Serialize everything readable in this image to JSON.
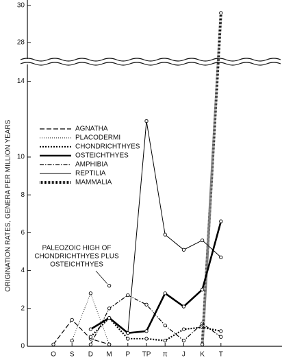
{
  "chart_data": {
    "type": "line",
    "y_label": "ORIGINATION RATES, GENERA PER MILLION YEARS",
    "categories": [
      "O",
      "S",
      "D",
      "M",
      "P",
      "TP",
      "π",
      "J",
      "K",
      "T"
    ],
    "ylim": [
      0,
      15
    ],
    "yticks": [
      0,
      2,
      4,
      6,
      8,
      10,
      14
    ],
    "y2lim": [
      27,
      30.3
    ],
    "y2ticks": [
      28,
      30
    ],
    "series": [
      {
        "name": "AGNATHA",
        "color": "#000000",
        "style": "dashed",
        "values": [
          0.1,
          1.4,
          0.4,
          0.1,
          null,
          null,
          null,
          null,
          null,
          null
        ]
      },
      {
        "name": "PLACODERMI",
        "color": "#000000",
        "style": "fine-dotted",
        "values": [
          null,
          0.3,
          2.8,
          0.1,
          null,
          null,
          null,
          null,
          null,
          null
        ]
      },
      {
        "name": "CHONDRICHTHYES",
        "color": "#000000",
        "style": "dotted",
        "values": [
          null,
          null,
          0.5,
          1.5,
          0.4,
          0.4,
          0.3,
          0.9,
          1.0,
          0.8
        ]
      },
      {
        "name": "OSTEICHTHYES",
        "color": "#000000",
        "style": "thick",
        "values": [
          null,
          null,
          0.9,
          1.5,
          0.7,
          0.8,
          2.8,
          2.1,
          3.0,
          6.6
        ]
      },
      {
        "name": "AMPHIBIA",
        "color": "#000000",
        "style": "dash-dot",
        "values": [
          null,
          null,
          0.1,
          2.0,
          2.7,
          2.2,
          1.1,
          0.3,
          1.2,
          0.5
        ]
      },
      {
        "name": "REPTILIA",
        "color": "#000000",
        "style": "thin",
        "values": [
          null,
          null,
          null,
          null,
          0.7,
          11.9,
          5.9,
          5.1,
          5.6,
          4.7
        ]
      },
      {
        "name": "MAMMALIA",
        "color": "#000000",
        "style": "hatched",
        "values": [
          null,
          null,
          null,
          null,
          null,
          null,
          null,
          null,
          0.1,
          29.6
        ]
      }
    ],
    "annotation": {
      "lines": [
        "PALEOZOIC HIGH OF",
        "CHONDRICHTHYES PLUS",
        "OSTEICHTHYES"
      ],
      "category": "M",
      "value": 3.2
    }
  }
}
